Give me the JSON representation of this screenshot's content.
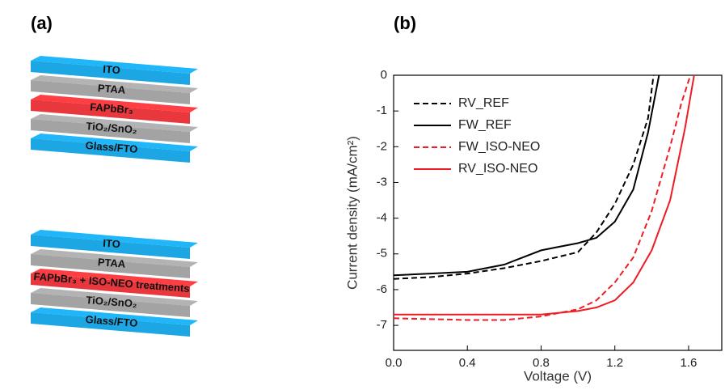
{
  "panel_a": {
    "label": "(a)",
    "stacks": [
      {
        "layers": [
          {
            "label": "ITO",
            "color": "#1ca6e3"
          },
          {
            "label": "PTAA",
            "color": "#a3a3a3"
          },
          {
            "label": "FAPbBr₃",
            "color": "#e8383d"
          },
          {
            "label": "TiO₂/SnO₂",
            "color": "#a3a3a3"
          },
          {
            "label": "Glass/FTO",
            "color": "#1ca6e3"
          }
        ]
      },
      {
        "layers": [
          {
            "label": "ITO",
            "color": "#1ca6e3"
          },
          {
            "label": "PTAA",
            "color": "#a3a3a3"
          },
          {
            "label": "FAPbBr₃ + ISO-NEO treatments",
            "color": "#e8383d"
          },
          {
            "label": "TiO₂/SnO₂",
            "color": "#a3a3a3"
          },
          {
            "label": "Glass/FTO",
            "color": "#1ca6e3"
          }
        ]
      }
    ]
  },
  "chart_data": {
    "type": "line",
    "panel_label": "(b)",
    "x_label": "Voltage (V)",
    "y_label": "Current density (mA/cm²)",
    "xlim": [
      0,
      1.78
    ],
    "ylim": [
      -7.7,
      0
    ],
    "xticks": [
      {
        "value": 0,
        "label": "0.0"
      },
      0.4,
      0.8,
      1.2,
      1.6
    ],
    "yticks": [
      0,
      -1,
      -2,
      -3,
      -4,
      -5,
      -6,
      -7
    ],
    "legend": "upper-left",
    "series": [
      {
        "name": "RV_REF",
        "color": "#000000",
        "dash": true,
        "x": [
          0,
          0.2,
          0.4,
          0.6,
          0.8,
          1.0,
          1.1,
          1.2,
          1.3,
          1.38,
          1.41
        ],
        "values": [
          -5.7,
          -5.65,
          -5.55,
          -5.4,
          -5.2,
          -4.95,
          -4.4,
          -3.6,
          -2.5,
          -1.2,
          0
        ]
      },
      {
        "name": "FW_REF",
        "color": "#000000",
        "dash": false,
        "x": [
          0,
          0.2,
          0.4,
          0.6,
          0.8,
          0.9,
          1.0,
          1.1,
          1.2,
          1.3,
          1.38,
          1.44
        ],
        "values": [
          -5.6,
          -5.55,
          -5.5,
          -5.3,
          -4.9,
          -4.8,
          -4.7,
          -4.55,
          -4.1,
          -3.2,
          -1.6,
          0
        ]
      },
      {
        "name": "FW_ISO-NEO",
        "color": "#ee1c24",
        "dash": true,
        "x": [
          0,
          0.4,
          0.6,
          0.8,
          1.0,
          1.1,
          1.2,
          1.3,
          1.4,
          1.5,
          1.56,
          1.61
        ],
        "values": [
          -6.8,
          -6.85,
          -6.85,
          -6.75,
          -6.55,
          -6.3,
          -5.8,
          -5.1,
          -3.8,
          -2.0,
          -0.8,
          0
        ]
      },
      {
        "name": "RV_ISO-NEO",
        "color": "#ee1c24",
        "dash": false,
        "x": [
          0,
          0.4,
          0.8,
          1.0,
          1.1,
          1.2,
          1.3,
          1.4,
          1.5,
          1.58,
          1.63
        ],
        "values": [
          -6.7,
          -6.7,
          -6.7,
          -6.6,
          -6.5,
          -6.3,
          -5.8,
          -4.9,
          -3.5,
          -1.5,
          0
        ]
      }
    ]
  }
}
